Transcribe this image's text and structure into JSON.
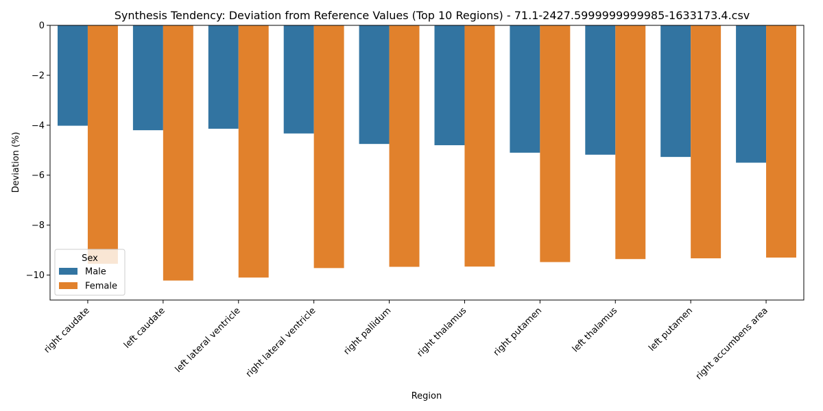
{
  "chart_data": {
    "type": "bar",
    "title": "Synthesis Tendency: Deviation from Reference Values (Top 10 Regions) - 71.1-2427.5999999999985-1633173.4.csv",
    "xlabel": "Region",
    "ylabel": "Deviation (%)",
    "ylim": [
      -11.0,
      0
    ],
    "yticks": [
      0,
      -2,
      -4,
      -6,
      -8,
      -10
    ],
    "grid": false,
    "legend": {
      "title": "Sex",
      "position": "lower-left"
    },
    "categories": [
      "right caudate",
      "left caudate",
      "left lateral ventricle",
      "right lateral ventricle",
      "right pallidum",
      "right thalamus",
      "right putamen",
      "left thalamus",
      "left putamen",
      "right accumbens area"
    ],
    "series": [
      {
        "name": "Male",
        "color": "#3274a1",
        "values": [
          -4.02,
          -4.2,
          -4.14,
          -4.33,
          -4.75,
          -4.8,
          -5.1,
          -5.18,
          -5.27,
          -5.5
        ]
      },
      {
        "name": "Female",
        "color": "#e1812c",
        "values": [
          -9.55,
          -10.22,
          -10.1,
          -9.72,
          -9.67,
          -9.66,
          -9.48,
          -9.36,
          -9.33,
          -9.3
        ]
      }
    ]
  }
}
